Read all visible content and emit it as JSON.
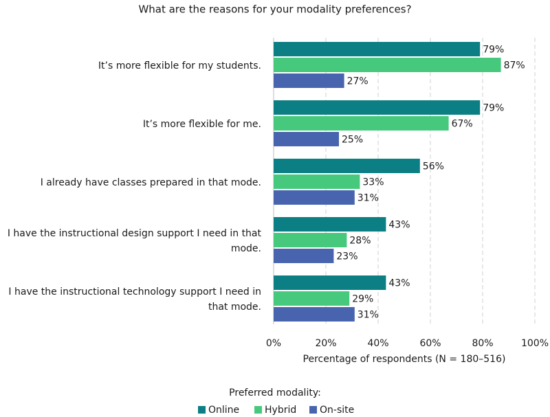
{
  "chart_data": {
    "type": "hbar",
    "title": "What are the reasons for your modality preferences?",
    "x_label": "Percentage of respondents (N = 180–516)",
    "legend_title": "Preferred modality:",
    "legend": "bottom",
    "grid": true,
    "categories": [
      "It’s more flexible for my students.",
      "It’s more flexible for me.",
      "I already have classes prepared in that mode.",
      "I have the instructional design support I need in that mode.",
      "I have the instructional technology support I need in that mode."
    ],
    "series": [
      {
        "name": "Online",
        "color": "#0b7f83",
        "values": [
          79,
          79,
          56,
          43,
          43
        ],
        "value_labels": [
          "79%",
          "79%",
          "56%",
          "43%",
          "43%"
        ]
      },
      {
        "name": "Hybrid",
        "color": "#47c97d",
        "values": [
          87,
          67,
          33,
          28,
          29
        ],
        "value_labels": [
          "87%",
          "67%",
          "33%",
          "28%",
          "29%"
        ]
      },
      {
        "name": "On-site",
        "color": "#4964ae",
        "values": [
          27,
          25,
          31,
          23,
          31
        ],
        "value_labels": [
          "27%",
          "25%",
          "31%",
          "23%",
          "31%"
        ]
      }
    ],
    "xlim": [
      0,
      100
    ],
    "xticks": [
      {
        "value": 0,
        "label": "0%"
      },
      {
        "value": 20,
        "label": "20%"
      },
      {
        "value": 40,
        "label": "40%"
      },
      {
        "value": 60,
        "label": "60%"
      },
      {
        "value": 80,
        "label": "80%"
      },
      {
        "value": 100,
        "label": "100%"
      }
    ]
  }
}
